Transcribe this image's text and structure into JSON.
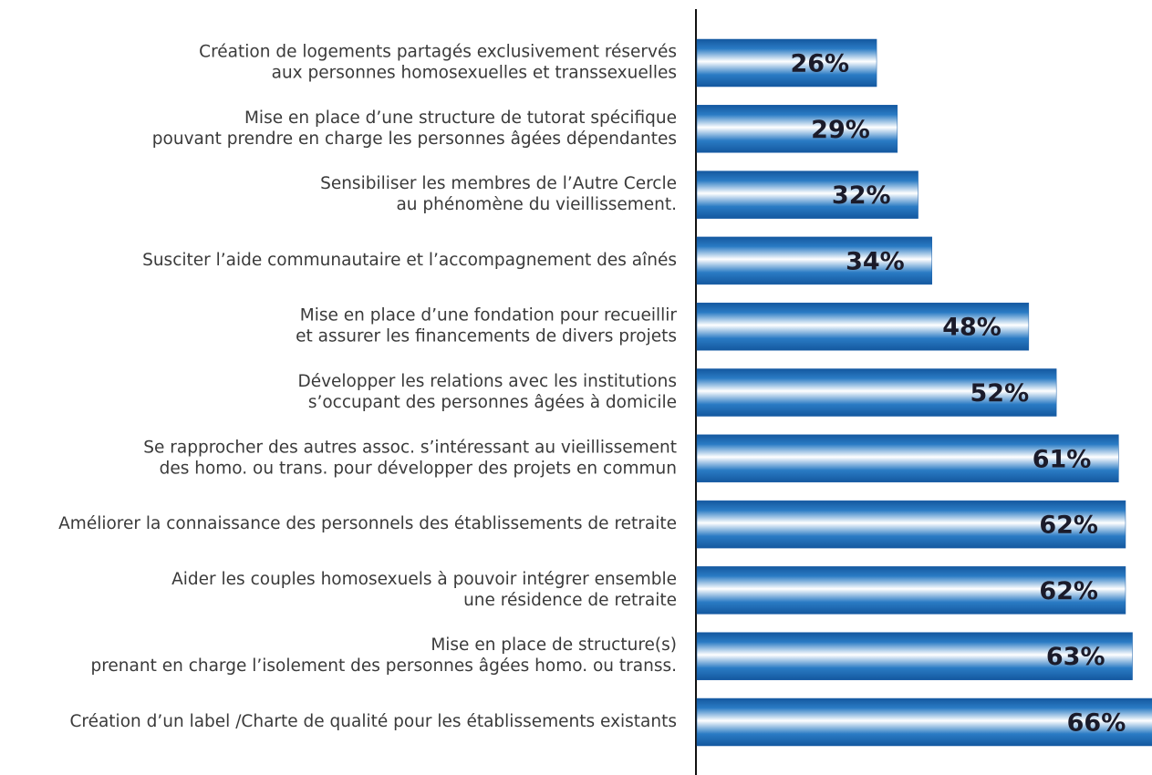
{
  "chart_data": {
    "type": "bar",
    "orientation": "horizontal",
    "categories": [
      [
        "Création de logements partagés exclusivement réservés",
        "aux personnes homosexuelles et transsexuelles"
      ],
      [
        "Mise en place d’une structure de tutorat spécifique",
        "pouvant prendre en charge les personnes âgées dépendantes"
      ],
      [
        "Sensibiliser les membres de l’Autre Cercle",
        "au phénomène du vieillissement."
      ],
      [
        "Susciter l’aide communautaire et l’accompagnement des aînés"
      ],
      [
        "Mise en place d’une fondation pour recueillir",
        "et assurer les financements de divers projets"
      ],
      [
        "Développer les relations avec les institutions",
        "s’occupant des personnes âgées à domicile"
      ],
      [
        "Se rapprocher des autres assoc. s’intéressant au vieillissement",
        "des homo. ou trans. pour développer des projets en commun"
      ],
      [
        "Améliorer la connaissance des personnels des établissements de retraite"
      ],
      [
        "Aider les couples homosexuels à pouvoir intégrer ensemble",
        "une résidence de retraite"
      ],
      [
        "Mise en place de structure(s)",
        "prenant en charge l’isolement des personnes âgées homo. ou transs."
      ],
      [
        "Création d’un label /Charte de qualité pour les établissements existants"
      ]
    ],
    "values": [
      26,
      29,
      32,
      34,
      48,
      52,
      61,
      62,
      62,
      63,
      66
    ],
    "value_labels": [
      "26%",
      "29%",
      "32%",
      "34%",
      "48%",
      "52%",
      "61%",
      "62%",
      "62%",
      "63%",
      "66%"
    ],
    "color": "#1a5ea8"
  }
}
